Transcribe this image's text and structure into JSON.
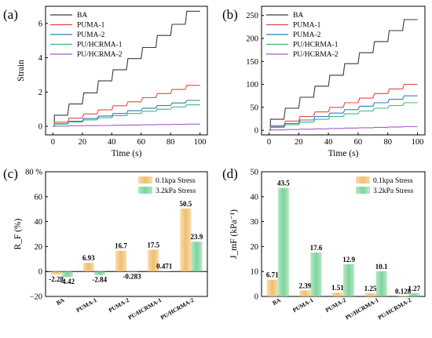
{
  "chart_data": [
    {
      "id": "a",
      "type": "line",
      "panel_label": "(a)",
      "xlabel": "Time (s)",
      "ylabel": "Strain",
      "xlim": [
        -5,
        105
      ],
      "ylim": [
        -0.5,
        7.0
      ],
      "xticks": [
        0,
        20,
        40,
        60,
        80,
        100
      ],
      "yticks": [
        0,
        2,
        4,
        6
      ],
      "grid": false,
      "legend_position": "top-left",
      "series": [
        {
          "name": "BA",
          "color": "#3a3a3a",
          "x": [
            0,
            1,
            1,
            10,
            10,
            11,
            11,
            20,
            20,
            21,
            21,
            30,
            30,
            31,
            31,
            40,
            40,
            41,
            41,
            50,
            50,
            51,
            51,
            60,
            60,
            61,
            61,
            70,
            70,
            71,
            71,
            80,
            80,
            81,
            81,
            90,
            90,
            91,
            91,
            100
          ],
          "y": [
            0,
            0,
            0.65,
            0.65,
            0.65,
            1.3,
            1.3,
            1.3,
            1.3,
            1.95,
            1.95,
            1.95,
            1.95,
            2.65,
            2.65,
            2.65,
            2.65,
            3.3,
            3.3,
            3.3,
            3.3,
            3.95,
            3.95,
            3.95,
            3.95,
            4.6,
            4.6,
            4.6,
            4.6,
            5.3,
            5.3,
            5.3,
            5.3,
            5.95,
            5.95,
            5.95,
            5.95,
            6.71,
            6.71,
            6.71
          ]
        },
        {
          "name": "PUMA-1",
          "color": "#e8474a",
          "x": [
            0,
            1,
            1,
            10,
            10,
            11,
            11,
            20,
            20,
            21,
            21,
            30,
            30,
            31,
            31,
            40,
            40,
            41,
            41,
            50,
            50,
            51,
            51,
            60,
            60,
            61,
            61,
            70,
            70,
            71,
            71,
            80,
            80,
            81,
            81,
            90,
            90,
            91,
            91,
            100
          ],
          "y": [
            0,
            0,
            0.24,
            0.24,
            0.24,
            0.48,
            0.48,
            0.48,
            0.48,
            0.72,
            0.72,
            0.72,
            0.72,
            0.96,
            0.96,
            0.96,
            0.96,
            1.2,
            1.2,
            1.2,
            1.2,
            1.43,
            1.43,
            1.43,
            1.43,
            1.67,
            1.67,
            1.67,
            1.67,
            1.91,
            1.91,
            1.91,
            1.91,
            2.15,
            2.15,
            2.15,
            2.15,
            2.39,
            2.39,
            2.39
          ]
        },
        {
          "name": "PUMA-2",
          "color": "#2e7fb8",
          "x": [
            0,
            1,
            1,
            10,
            10,
            11,
            11,
            20,
            20,
            21,
            21,
            30,
            30,
            31,
            31,
            40,
            40,
            41,
            41,
            50,
            50,
            51,
            51,
            60,
            60,
            61,
            61,
            70,
            70,
            71,
            71,
            80,
            80,
            81,
            81,
            90,
            90,
            91,
            91,
            100
          ],
          "y": [
            0,
            0,
            0.15,
            0.15,
            0.15,
            0.3,
            0.3,
            0.3,
            0.3,
            0.45,
            0.45,
            0.45,
            0.45,
            0.6,
            0.6,
            0.6,
            0.6,
            0.75,
            0.75,
            0.75,
            0.75,
            0.91,
            0.91,
            0.91,
            0.91,
            1.06,
            1.06,
            1.06,
            1.06,
            1.21,
            1.21,
            1.21,
            1.21,
            1.36,
            1.36,
            1.36,
            1.36,
            1.51,
            1.51,
            1.51
          ]
        },
        {
          "name": "PU/HCRMA-1",
          "color": "#3cb878",
          "x": [
            0,
            1,
            1,
            10,
            10,
            11,
            11,
            20,
            20,
            21,
            21,
            30,
            30,
            31,
            31,
            40,
            40,
            41,
            41,
            50,
            50,
            51,
            51,
            60,
            60,
            61,
            61,
            70,
            70,
            71,
            71,
            80,
            80,
            81,
            81,
            90,
            90,
            91,
            91,
            100
          ],
          "y": [
            0,
            0,
            0.125,
            0.125,
            0.125,
            0.25,
            0.25,
            0.25,
            0.25,
            0.375,
            0.375,
            0.375,
            0.375,
            0.5,
            0.5,
            0.5,
            0.5,
            0.625,
            0.625,
            0.625,
            0.625,
            0.75,
            0.75,
            0.75,
            0.75,
            0.875,
            0.875,
            0.875,
            0.875,
            1.0,
            1.0,
            1.0,
            1.0,
            1.125,
            1.125,
            1.125,
            1.125,
            1.25,
            1.25,
            1.25
          ]
        },
        {
          "name": "PU/HCRMA-2",
          "color": "#a85bc8",
          "x": [
            0,
            1,
            1,
            10,
            10,
            11,
            11,
            20,
            20,
            21,
            21,
            30,
            30,
            31,
            31,
            40,
            40,
            41,
            41,
            50,
            50,
            51,
            51,
            60,
            60,
            61,
            61,
            70,
            70,
            71,
            71,
            80,
            80,
            81,
            81,
            90,
            90,
            91,
            91,
            100
          ],
          "y": [
            0,
            0,
            0.013,
            0.013,
            0.013,
            0.026,
            0.026,
            0.026,
            0.026,
            0.038,
            0.038,
            0.038,
            0.038,
            0.051,
            0.051,
            0.051,
            0.051,
            0.064,
            0.064,
            0.064,
            0.064,
            0.077,
            0.077,
            0.077,
            0.077,
            0.09,
            0.09,
            0.09,
            0.09,
            0.102,
            0.102,
            0.102,
            0.102,
            0.115,
            0.115,
            0.115,
            0.115,
            0.128,
            0.128,
            0.128
          ]
        }
      ]
    },
    {
      "id": "b",
      "type": "line",
      "panel_label": "(b)",
      "xlabel": "Time (s)",
      "ylabel": "",
      "xlim": [
        -5,
        105
      ],
      "ylim": [
        -10,
        270
      ],
      "xticks": [
        0,
        20,
        40,
        60,
        80,
        100
      ],
      "yticks": [
        0,
        50,
        100,
        150,
        200,
        250
      ],
      "grid": false,
      "legend_position": "top-left",
      "series": [
        {
          "name": "BA",
          "color": "#3a3a3a",
          "x": [
            0,
            1,
            1,
            10,
            10,
            11,
            11,
            20,
            20,
            21,
            21,
            30,
            30,
            31,
            31,
            40,
            40,
            41,
            41,
            50,
            50,
            51,
            51,
            60,
            60,
            61,
            61,
            70,
            70,
            71,
            71,
            80,
            80,
            81,
            81,
            90,
            90,
            91,
            91,
            100
          ],
          "y": [
            0,
            0,
            24,
            24,
            24,
            48,
            48,
            48,
            48,
            72,
            72,
            72,
            72,
            96,
            96,
            96,
            96,
            120,
            120,
            120,
            120,
            145,
            145,
            145,
            145,
            169,
            169,
            169,
            169,
            193,
            193,
            193,
            193,
            217,
            217,
            217,
            217,
            241,
            241,
            241
          ]
        },
        {
          "name": "PUMA-1",
          "color": "#e8474a",
          "x": [
            0,
            1,
            1,
            10,
            10,
            11,
            11,
            20,
            20,
            21,
            21,
            30,
            30,
            31,
            31,
            40,
            40,
            41,
            41,
            50,
            50,
            51,
            51,
            60,
            60,
            61,
            61,
            70,
            70,
            71,
            71,
            80,
            80,
            81,
            81,
            90,
            90,
            91,
            91,
            100
          ],
          "y": [
            0,
            0,
            10,
            10,
            10,
            20,
            20,
            20,
            20,
            30,
            30,
            30,
            30,
            40,
            40,
            40,
            40,
            50,
            50,
            50,
            50,
            60,
            60,
            60,
            60,
            70,
            70,
            70,
            70,
            80,
            80,
            80,
            80,
            90,
            90,
            90,
            90,
            100,
            100,
            100
          ]
        },
        {
          "name": "PUMA-2",
          "color": "#2e7fb8",
          "x": [
            0,
            1,
            1,
            10,
            10,
            11,
            11,
            20,
            20,
            21,
            21,
            30,
            30,
            31,
            31,
            40,
            40,
            41,
            41,
            50,
            50,
            51,
            51,
            60,
            60,
            61,
            61,
            70,
            70,
            71,
            71,
            80,
            80,
            81,
            81,
            90,
            90,
            91,
            91,
            100
          ],
          "y": [
            0,
            0,
            7.5,
            7.5,
            7.5,
            15,
            15,
            15,
            15,
            22.5,
            22.5,
            22.5,
            22.5,
            30,
            30,
            30,
            30,
            37.5,
            37.5,
            37.5,
            37.5,
            45,
            45,
            45,
            45,
            52.5,
            52.5,
            52.5,
            52.5,
            60,
            60,
            60,
            60,
            67.5,
            67.5,
            67.5,
            67.5,
            75,
            75,
            75
          ]
        },
        {
          "name": "PU/HCRMA-1",
          "color": "#3cb878",
          "x": [
            0,
            1,
            1,
            10,
            10,
            11,
            11,
            20,
            20,
            21,
            21,
            30,
            30,
            31,
            31,
            40,
            40,
            41,
            41,
            50,
            50,
            51,
            51,
            60,
            60,
            61,
            61,
            70,
            70,
            71,
            71,
            80,
            80,
            81,
            81,
            90,
            90,
            91,
            91,
            100
          ],
          "y": [
            0,
            0,
            6,
            6,
            6,
            12,
            12,
            12,
            12,
            18,
            18,
            18,
            18,
            24,
            24,
            24,
            24,
            30,
            30,
            30,
            30,
            36,
            36,
            36,
            36,
            42,
            42,
            42,
            42,
            48,
            48,
            48,
            48,
            54,
            54,
            54,
            54,
            60,
            60,
            60
          ]
        },
        {
          "name": "PU/HCRMA-2",
          "color": "#a85bc8",
          "x": [
            0,
            1,
            1,
            10,
            10,
            11,
            11,
            20,
            20,
            21,
            21,
            30,
            30,
            31,
            31,
            40,
            40,
            41,
            41,
            50,
            50,
            51,
            51,
            60,
            60,
            61,
            61,
            70,
            70,
            71,
            71,
            80,
            80,
            81,
            81,
            90,
            90,
            91,
            91,
            100
          ],
          "y": [
            0,
            0,
            0.8,
            0.8,
            0.8,
            1.6,
            1.6,
            1.6,
            1.6,
            2.4,
            2.4,
            2.4,
            2.4,
            3.2,
            3.2,
            3.2,
            3.2,
            4.0,
            4.0,
            4.0,
            4.0,
            4.8,
            4.8,
            4.8,
            4.8,
            5.6,
            5.6,
            5.6,
            5.6,
            6.4,
            6.4,
            6.4,
            6.4,
            7.2,
            7.2,
            7.2,
            7.2,
            8.0,
            8.0,
            8.0
          ]
        }
      ]
    },
    {
      "id": "c",
      "type": "bar",
      "panel_label": "(c)",
      "xlabel": "",
      "ylabel": "R_F (%)",
      "ylim": [
        -20,
        80
      ],
      "yticks": [
        -20,
        0,
        20,
        40,
        60,
        80
      ],
      "ytick_labels": [
        "−20",
        "0",
        "20",
        "40",
        "60",
        "80 %"
      ],
      "grid": false,
      "legend_position": "top-right",
      "categories": [
        "BA",
        "PUMA-1",
        "PUMA-2",
        "PU/HCRMA-1",
        "PU/HCRMA-2"
      ],
      "series": [
        {
          "name": "0.1kpa Stress",
          "color": "#f1bf6e",
          "values": [
            -2.28,
            6.93,
            16.7,
            17.5,
            50.5
          ],
          "labels": [
            "-2.28",
            "6.93",
            "16.7",
            "17.5",
            "50.5"
          ]
        },
        {
          "name": "3.2kPa Stress",
          "color": "#7dd49a",
          "values": [
            -4.42,
            -2.84,
            -0.283,
            0.471,
            23.9
          ],
          "labels": [
            "-4.42",
            "-2.84",
            "-0.283",
            "0.471",
            "23.9"
          ]
        }
      ]
    },
    {
      "id": "d",
      "type": "bar",
      "panel_label": "(d)",
      "xlabel": "",
      "ylabel": "J_mF (kPa⁻¹)",
      "ylim": [
        0,
        50
      ],
      "yticks": [
        0,
        10,
        20,
        30,
        40,
        50
      ],
      "grid": false,
      "legend_position": "top-right",
      "categories": [
        "BA",
        "PUMA-1",
        "PUMA-2",
        "PU/HCRMA-1",
        "PU/HCRMA-2"
      ],
      "series": [
        {
          "name": "0.1kpa Stress",
          "color": "#f1bf6e",
          "values": [
            6.71,
            2.39,
            1.51,
            1.25,
            0.128
          ],
          "labels": [
            "6.71",
            "2.39",
            "1.51",
            "1.25",
            "0.128"
          ]
        },
        {
          "name": "3.2kPa Stress",
          "color": "#7dd49a",
          "values": [
            43.5,
            17.6,
            12.9,
            10.1,
            1.27
          ],
          "labels": [
            "43.5",
            "17.6",
            "12.9",
            "10.1",
            "1.27"
          ]
        }
      ]
    }
  ]
}
